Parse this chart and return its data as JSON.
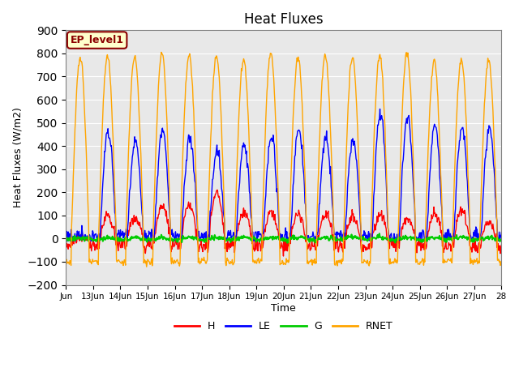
{
  "title": "Heat Fluxes",
  "ylabel": "Heat Fluxes (W/m2)",
  "xlabel": "Time",
  "ylim": [
    -200,
    900
  ],
  "yticks": [
    -200,
    -100,
    0,
    100,
    200,
    300,
    400,
    500,
    600,
    700,
    800,
    900
  ],
  "annotation": "EP_level1",
  "legend": [
    "H",
    "LE",
    "G",
    "RNET"
  ],
  "colors": {
    "H": "#ff0000",
    "LE": "#0000ff",
    "G": "#00cc00",
    "RNET": "#ffa500"
  },
  "bg_color": "#e8e8e8",
  "n_days": 16,
  "pts_per_day": 48,
  "start_day": 12,
  "xtick_labels": [
    "Jun",
    "13Jun",
    "14Jun",
    "15Jun",
    "16Jun",
    "17Jun",
    "18Jun",
    "19Jun",
    "20Jun",
    "21Jun",
    "22Jun",
    "23Jun",
    "24Jun",
    "25Jun",
    "26Jun",
    "27Jun",
    "28"
  ]
}
